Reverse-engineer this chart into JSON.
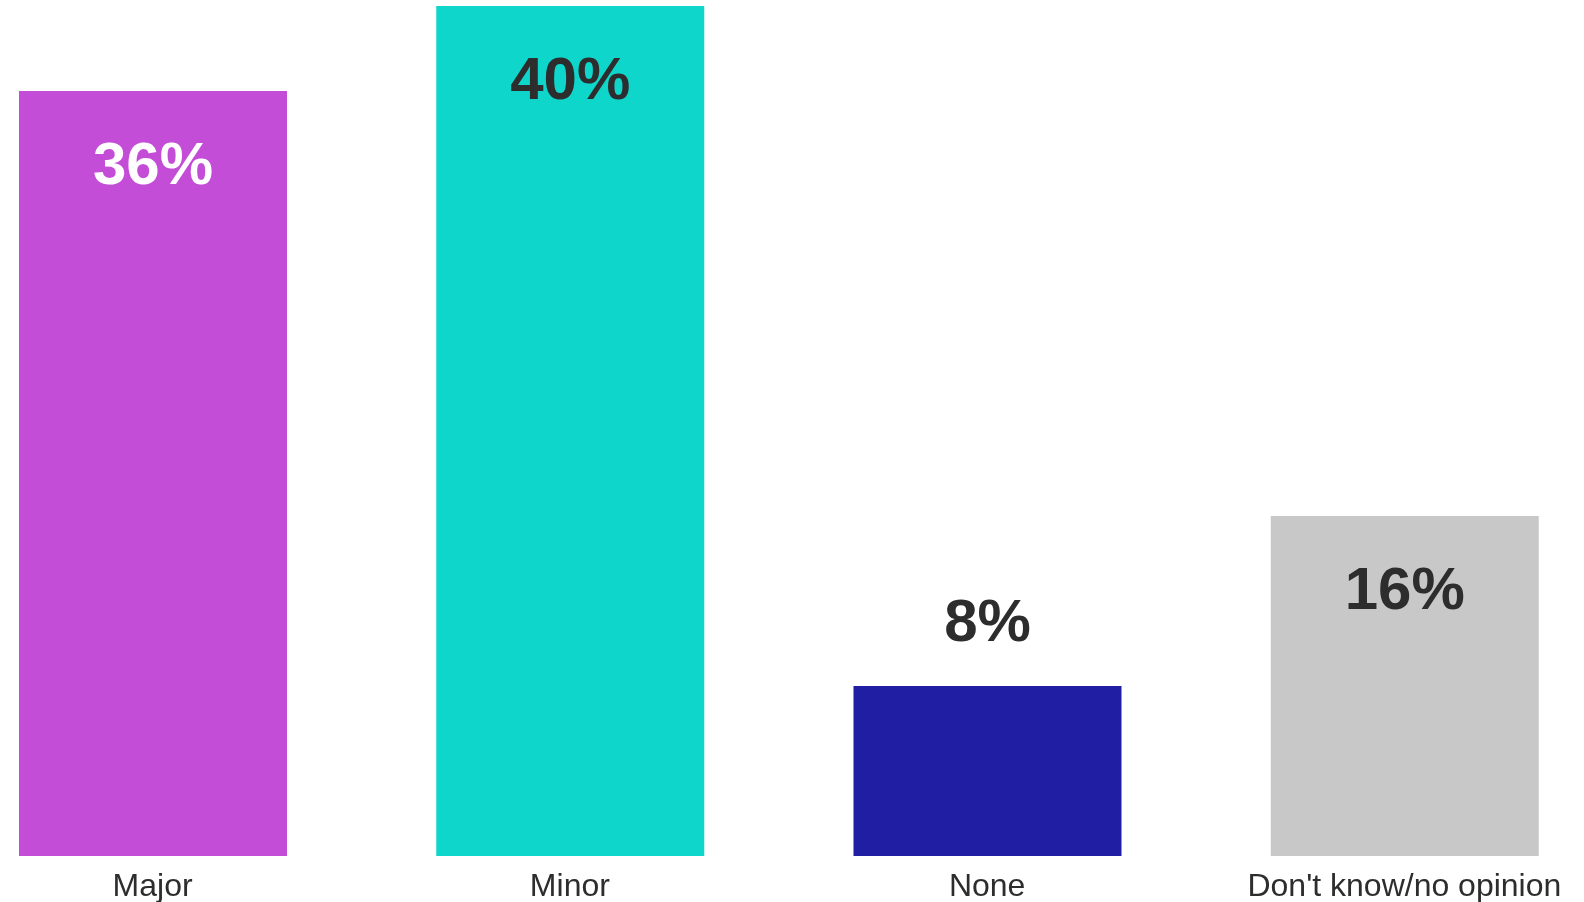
{
  "chart_data": {
    "type": "bar",
    "categories": [
      "Major",
      "Minor",
      "None",
      "Don't know/no opinion"
    ],
    "values": [
      36,
      40,
      8,
      16
    ],
    "colors": [
      "#c44dd8",
      "#0fd6cb",
      "#201fa3",
      "#c8c8c8"
    ],
    "value_labels": [
      "36%",
      "40%",
      "8%",
      "16%"
    ],
    "ylim": [
      0,
      40
    ],
    "tick_labels": "x"
  }
}
